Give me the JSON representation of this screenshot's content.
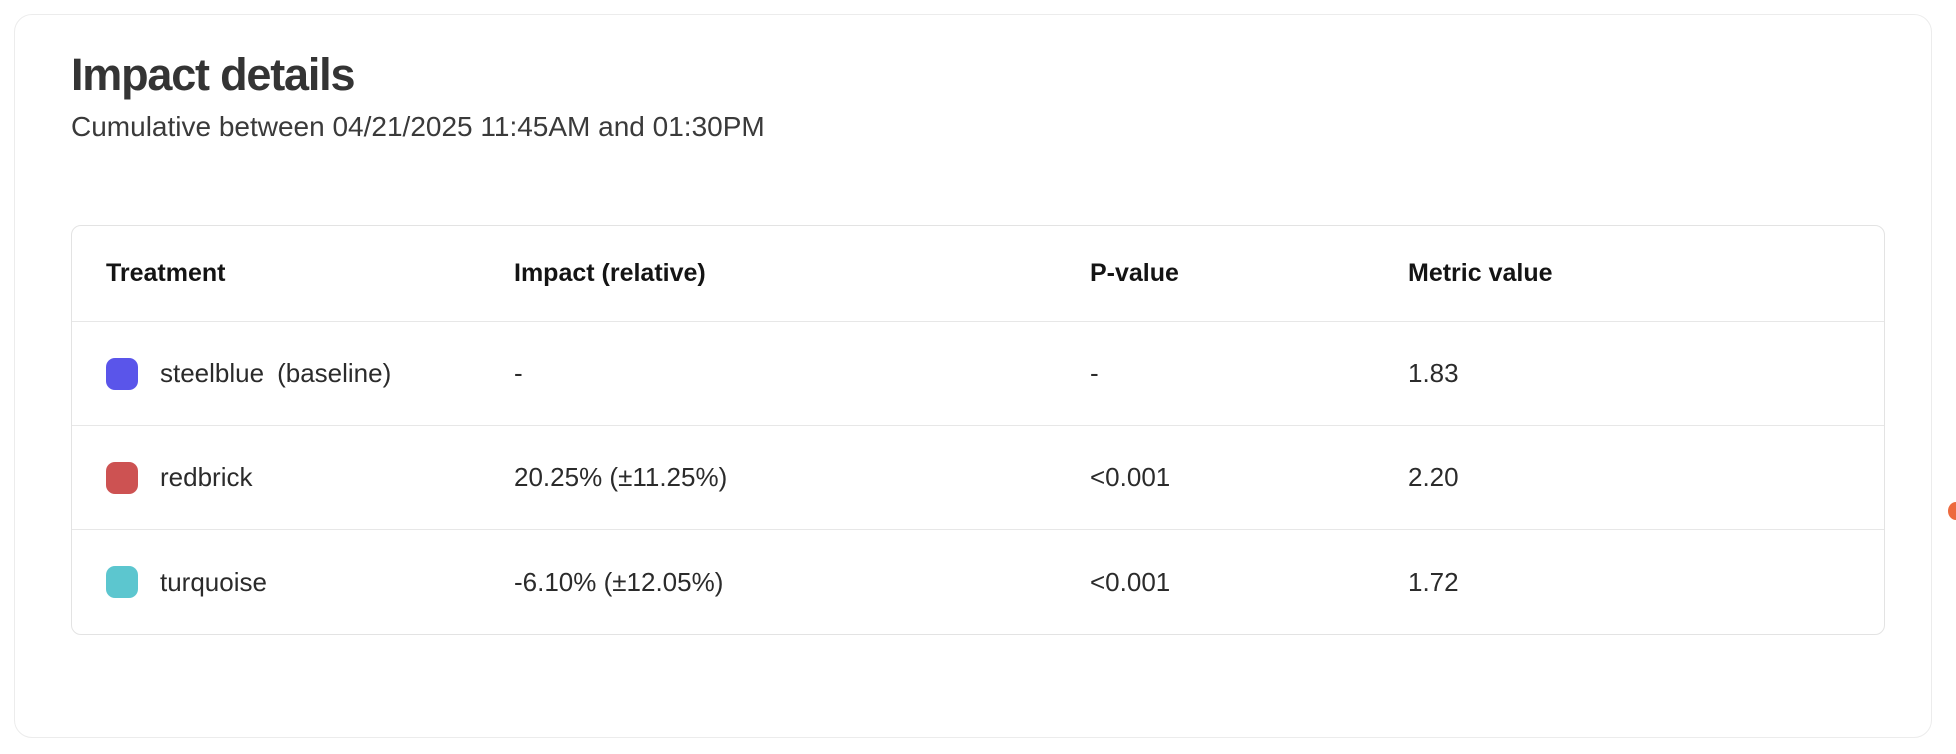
{
  "card": {
    "title": "Impact details",
    "subtitle": "Cumulative between 04/21/2025 11:45AM and 01:30PM"
  },
  "table": {
    "columns": [
      "Treatment",
      "Impact (relative)",
      "P-value",
      "Metric value"
    ],
    "rows": [
      {
        "treatment": "steelblue",
        "suffix": "(baseline)",
        "swatch_color": "#5a55ea",
        "impact": "-",
        "p_value": "-",
        "metric_value": "1.83"
      },
      {
        "treatment": "redbrick",
        "suffix": "",
        "swatch_color": "#cd5252",
        "impact": "20.25% (±11.25%)",
        "p_value": "<0.001",
        "metric_value": "2.20"
      },
      {
        "treatment": "turquoise",
        "suffix": "",
        "swatch_color": "#5cc6cf",
        "impact": "-6.10% (±12.05%)",
        "p_value": "<0.001",
        "metric_value": "1.72"
      }
    ]
  },
  "edge_indicator": {
    "color": "#ed6a3f"
  }
}
